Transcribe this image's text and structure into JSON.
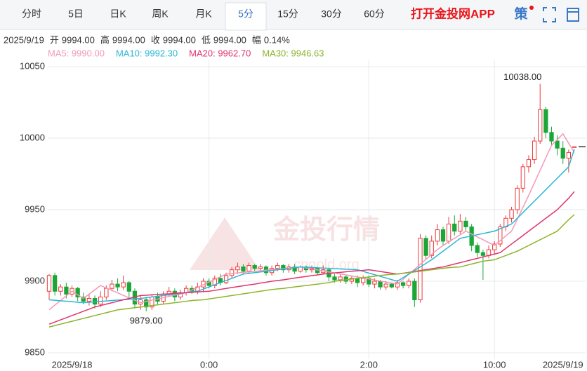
{
  "toolbar": {
    "tabs": [
      "分时",
      "5日",
      "日K",
      "周K",
      "月K",
      "5分",
      "15分",
      "30分",
      "60分"
    ],
    "selected": "5分",
    "app_link": "打开金投网APP",
    "strategy_icon": "策"
  },
  "info": {
    "date": "2025/9/19",
    "items": [
      {
        "label": "开",
        "value": "9994.00"
      },
      {
        "label": "高",
        "value": "9994.00"
      },
      {
        "label": "收",
        "value": "9994.00"
      },
      {
        "label": "低",
        "value": "9994.00"
      },
      {
        "label": "幅",
        "value": "0.14%"
      }
    ]
  },
  "watermark": {
    "brand": "金投行情",
    "site": "cngold.org"
  },
  "chart_data": {
    "type": "candlestick",
    "up_color": "#ee3a3a",
    "down_color": "#1ca637",
    "grid": true,
    "ylim": [
      9850,
      10050
    ],
    "yticks": [
      9850,
      9900,
      9950,
      10000,
      10050
    ],
    "categories": [
      null,
      null,
      null,
      null,
      "2025/9/18",
      null,
      null,
      null,
      null,
      null,
      null,
      null,
      null,
      null,
      null,
      null,
      null,
      null,
      null,
      null,
      null,
      null,
      null,
      null,
      null,
      null,
      null,
      null,
      "0:00",
      null,
      null,
      null,
      null,
      null,
      null,
      null,
      null,
      null,
      null,
      null,
      null,
      null,
      null,
      null,
      null,
      null,
      null,
      null,
      null,
      null,
      null,
      null,
      null,
      null,
      null,
      null,
      "2:00",
      null,
      null,
      null,
      null,
      null,
      null,
      null,
      null,
      null,
      null,
      null,
      null,
      null,
      null,
      null,
      null,
      null,
      null,
      null,
      null,
      null,
      "10:00",
      null,
      null,
      null,
      null,
      null,
      null,
      null,
      null,
      null,
      null,
      null,
      "2025/9/19",
      null,
      null
    ],
    "open": [
      9893,
      9904,
      9893,
      9896,
      9891,
      9895,
      9889,
      9886,
      9888,
      9884,
      9889,
      9895,
      9898,
      9896,
      9899,
      9893,
      9884,
      9887,
      9882,
      9889,
      9886,
      9891,
      9893,
      9889,
      9892,
      9895,
      9893,
      9896,
      9900,
      9897,
      9902,
      9899,
      9904,
      9908,
      9910,
      9907,
      9911,
      9909,
      9910,
      9906,
      9909,
      9911,
      9908,
      9910,
      9907,
      9910,
      9908,
      9909,
      9906,
      9908,
      9903,
      9901,
      9903,
      9900,
      9902,
      9899,
      9902,
      9898,
      9900,
      9896,
      9898,
      9896,
      9899,
      9897,
      9900,
      9887,
      9930,
      9918,
      9928,
      9936,
      9928,
      9940,
      9935,
      9942,
      9938,
      9925,
      9920,
      9918,
      9922,
      9926,
      9938,
      9944,
      9950,
      9965,
      9980,
      9985,
      9998,
      10020,
      10004,
      9998,
      9993,
      9986,
      9994
    ],
    "high": [
      9905,
      9906,
      9898,
      9899,
      9897,
      9896,
      9892,
      9891,
      9890,
      9893,
      9897,
      9901,
      9902,
      9904,
      9900,
      9895,
      9890,
      9889,
      9891,
      9892,
      9893,
      9896,
      9895,
      9894,
      9897,
      9897,
      9899,
      9902,
      9902,
      9904,
      9905,
      9906,
      9910,
      9913,
      9912,
      9913,
      9912,
      9912,
      9911,
      9911,
      9913,
      9912,
      9912,
      9912,
      9911,
      9911,
      9911,
      9910,
      9911,
      9909,
      9905,
      9905,
      9904,
      9904,
      9904,
      9904,
      9904,
      9902,
      9901,
      9900,
      9899,
      9901,
      9900,
      9902,
      9902,
      9933,
      9932,
      9932,
      9940,
      9938,
      9945,
      9946,
      9947,
      9945,
      9940,
      9927,
      9922,
      9925,
      9928,
      9940,
      9946,
      9952,
      9967,
      9982,
      9988,
      10001,
      10038,
      10022,
      10008,
      10002,
      9998,
      9992,
      9994
    ],
    "low": [
      9887,
      9890,
      9890,
      9888,
      9889,
      9886,
      9884,
      9883,
      9881,
      9882,
      9887,
      9893,
      9893,
      9894,
      9889,
      9881,
      9880,
      9879,
      9880,
      9884,
      9884,
      9889,
      9886,
      9887,
      9890,
      9891,
      9891,
      9893,
      9895,
      9895,
      9897,
      9898,
      9902,
      9905,
      9905,
      9905,
      9907,
      9907,
      9904,
      9904,
      9907,
      9906,
      9906,
      9905,
      9906,
      9906,
      9906,
      9904,
      9905,
      9900,
      9899,
      9899,
      9898,
      9898,
      9896,
      9897,
      9896,
      9895,
      9894,
      9894,
      9895,
      9894,
      9895,
      9895,
      9882,
      9885,
      9915,
      9916,
      9925,
      9925,
      9926,
      9932,
      9933,
      9935,
      9921,
      9917,
      9901,
      9916,
      9919,
      9924,
      9935,
      9941,
      9947,
      9962,
      9976,
      9982,
      9996,
      10000,
      9995,
      9988,
      9982,
      9976,
      9994
    ],
    "close": [
      9904,
      9893,
      9896,
      9891,
      9895,
      9889,
      9886,
      9888,
      9884,
      9889,
      9895,
      9898,
      9896,
      9899,
      9893,
      9884,
      9887,
      9882,
      9889,
      9886,
      9891,
      9893,
      9889,
      9892,
      9895,
      9893,
      9896,
      9900,
      9897,
      9902,
      9899,
      9904,
      9908,
      9910,
      9907,
      9911,
      9909,
      9910,
      9906,
      9909,
      9911,
      9908,
      9910,
      9907,
      9910,
      9908,
      9909,
      9906,
      9908,
      9903,
      9901,
      9903,
      9900,
      9902,
      9899,
      9902,
      9898,
      9900,
      9896,
      9898,
      9896,
      9899,
      9897,
      9900,
      9887,
      9930,
      9918,
      9928,
      9936,
      9928,
      9940,
      9935,
      9942,
      9938,
      9925,
      9920,
      9918,
      9922,
      9926,
      9938,
      9944,
      9950,
      9965,
      9980,
      9985,
      9998,
      10020,
      10004,
      9998,
      9993,
      9986,
      9990,
      9994
    ],
    "max_label": {
      "value": 10038,
      "label": "10038.00"
    },
    "min_label": {
      "value": 9879,
      "label": "9879.00"
    },
    "series": [
      {
        "name": "MA5: 9990.00",
        "color": "#f29ab6",
        "values": [
          9880,
          9883.3,
          9886.5,
          9889.8,
          9893,
          9890.5,
          9888,
          9891,
          9894,
          9897,
          9895.3,
          9893.6,
          9891.9,
          9890.1,
          9888.4,
          9886.7,
          9885,
          9885.9,
          9886.8,
          9887.6,
          9888.5,
          9889.4,
          9890.3,
          9891.1,
          9892,
          9893.9,
          9895.7,
          9897.6,
          9899.4,
          9901.3,
          9903.1,
          9905,
          9905.4,
          9905.8,
          9906.2,
          9906.5,
          9906.9,
          9907.3,
          9907.7,
          9908.1,
          9908.5,
          9908.8,
          9909.2,
          9909.6,
          9910,
          9909.3,
          9908.6,
          9907.9,
          9907.2,
          9906.5,
          9905.8,
          9905.1,
          9904.4,
          9903.7,
          9903,
          9902.3,
          9901.6,
          9900.9,
          9900.1,
          9899.4,
          9898.7,
          9898,
          9901.4,
          9904.9,
          9908.3,
          9911.8,
          9915.2,
          9918.7,
          9922.1,
          9925,
          9927.5,
          9930,
          9932.5,
          9935,
          9933,
          9931,
          9929,
          9927,
          9925,
          9928.3,
          9931.7,
          9935,
          9943.3,
          9951.7,
          9960,
          9968.8,
          9977.5,
          9986.3,
          9995,
          9999,
          10003,
          9996.5,
          9990
        ]
      },
      {
        "name": "MA10: 9992.30",
        "color": "#29b8d6",
        "values": [
          9887,
          9886.7,
          9886.3,
          9886,
          9885.7,
          9885.3,
          9885,
          9885.3,
          9885.6,
          9885.9,
          9886.2,
          9886.5,
          9886.8,
          9887.1,
          9887.4,
          9887.7,
          9888,
          9888.5,
          9889,
          9889.5,
          9890,
          9890.5,
          9891,
          9891.5,
          9892,
          9892.5,
          9893,
          9894.5,
          9896,
          9897.5,
          9899,
          9900.5,
          9902,
          9903.5,
          9905,
          9905.5,
          9906,
          9906.5,
          9907,
          9907.5,
          9908,
          9908.5,
          9909,
          9909.5,
          9910,
          9909.8,
          9909.6,
          9909.4,
          9909.2,
          9909,
          9908.8,
          9908.6,
          9908.4,
          9908.2,
          9908,
          9906.9,
          9905.7,
          9904.6,
          9903.4,
          9902.3,
          9901.1,
          9900,
          9902.5,
          9905,
          9907.5,
          9910,
          9912.5,
          9915,
          9918,
          9921,
          9924,
          9927,
          9930,
          9930.8,
          9931.7,
          9932.5,
          9933.3,
          9934.2,
          9935,
          9936.7,
          9938.3,
          9940,
          9944,
          9948,
          9952,
          9956,
          9960,
          9964,
          9968,
          9972,
          9976,
          9980,
          9992.3
        ]
      },
      {
        "name": "MA20: 9962.70",
        "color": "#e3336d",
        "values": [
          9870,
          9871.5,
          9873,
          9874.5,
          9876,
          9877.5,
          9879,
          9880.5,
          9882,
          9883,
          9884,
          9885,
          9886,
          9887,
          9888,
          9889,
          9890,
          9890.2,
          9890.5,
          9890.8,
          9891,
          9891.2,
          9891.5,
          9891.8,
          9892,
          9892.2,
          9892.5,
          9892.8,
          9893,
          9893.6,
          9894.3,
          9895,
          9895.6,
          9896.2,
          9896.8,
          9897.4,
          9898,
          9898.7,
          9899.3,
          9900,
          9900.5,
          9901,
          9901.6,
          9902.2,
          9902.8,
          9903.3,
          9903.9,
          9904.4,
          9905,
          9905.4,
          9905.8,
          9906.2,
          9906.6,
          9907,
          9907.3,
          9907.6,
          9908,
          9907.4,
          9906.8,
          9906.2,
          9905.6,
          9905,
          9905.6,
          9906.2,
          9906.8,
          9907.5,
          9908.1,
          9908.7,
          9909.4,
          9910,
          9911,
          9912,
          9913,
          9914,
          9915,
          9916,
          9917,
          9918,
          9919,
          9920,
          9923,
          9926,
          9929,
          9932,
          9935,
          9938,
          9941,
          9944,
          9947,
          9950,
          9954,
          9958,
          9962.7
        ]
      },
      {
        "name": "MA30: 9946.63",
        "color": "#8cb42b",
        "values": [
          9868,
          9869,
          9870,
          9871,
          9872,
          9873,
          9874,
          9875,
          9876,
          9877,
          9878,
          9879,
          9880,
          9880.5,
          9881,
          9881.5,
          9882,
          9882.5,
          9883,
          9883.5,
          9884,
          9884.5,
          9885,
          9885.5,
          9886,
          9886.5,
          9886.8,
          9887,
          9887.6,
          9888.2,
          9888.8,
          9889.4,
          9890,
          9890.6,
          9891.2,
          9891.8,
          9892.4,
          9893,
          9893.6,
          9894.2,
          9894.6,
          9895,
          9895.5,
          9896,
          9896.5,
          9897,
          9897.5,
          9898,
          9898.5,
          9899,
          9900,
          9900.5,
          9901,
          9901.5,
          9902,
          9902.5,
          9903,
          9903.5,
          9904,
          9904.5,
          9904.8,
          9905,
          9905.5,
          9906,
          9906.5,
          9907,
          9907.5,
          9908,
          9908.5,
          9909,
          9909.5,
          9909.8,
          9910,
          9911,
          9912,
          9913,
          9914,
          9914.5,
          9915,
          9916.5,
          9918,
          9919.5,
          9921,
          9923,
          9925,
          9927,
          9929,
          9931,
          9933,
          9935,
          9939,
          9943,
          9946.63
        ]
      }
    ]
  }
}
